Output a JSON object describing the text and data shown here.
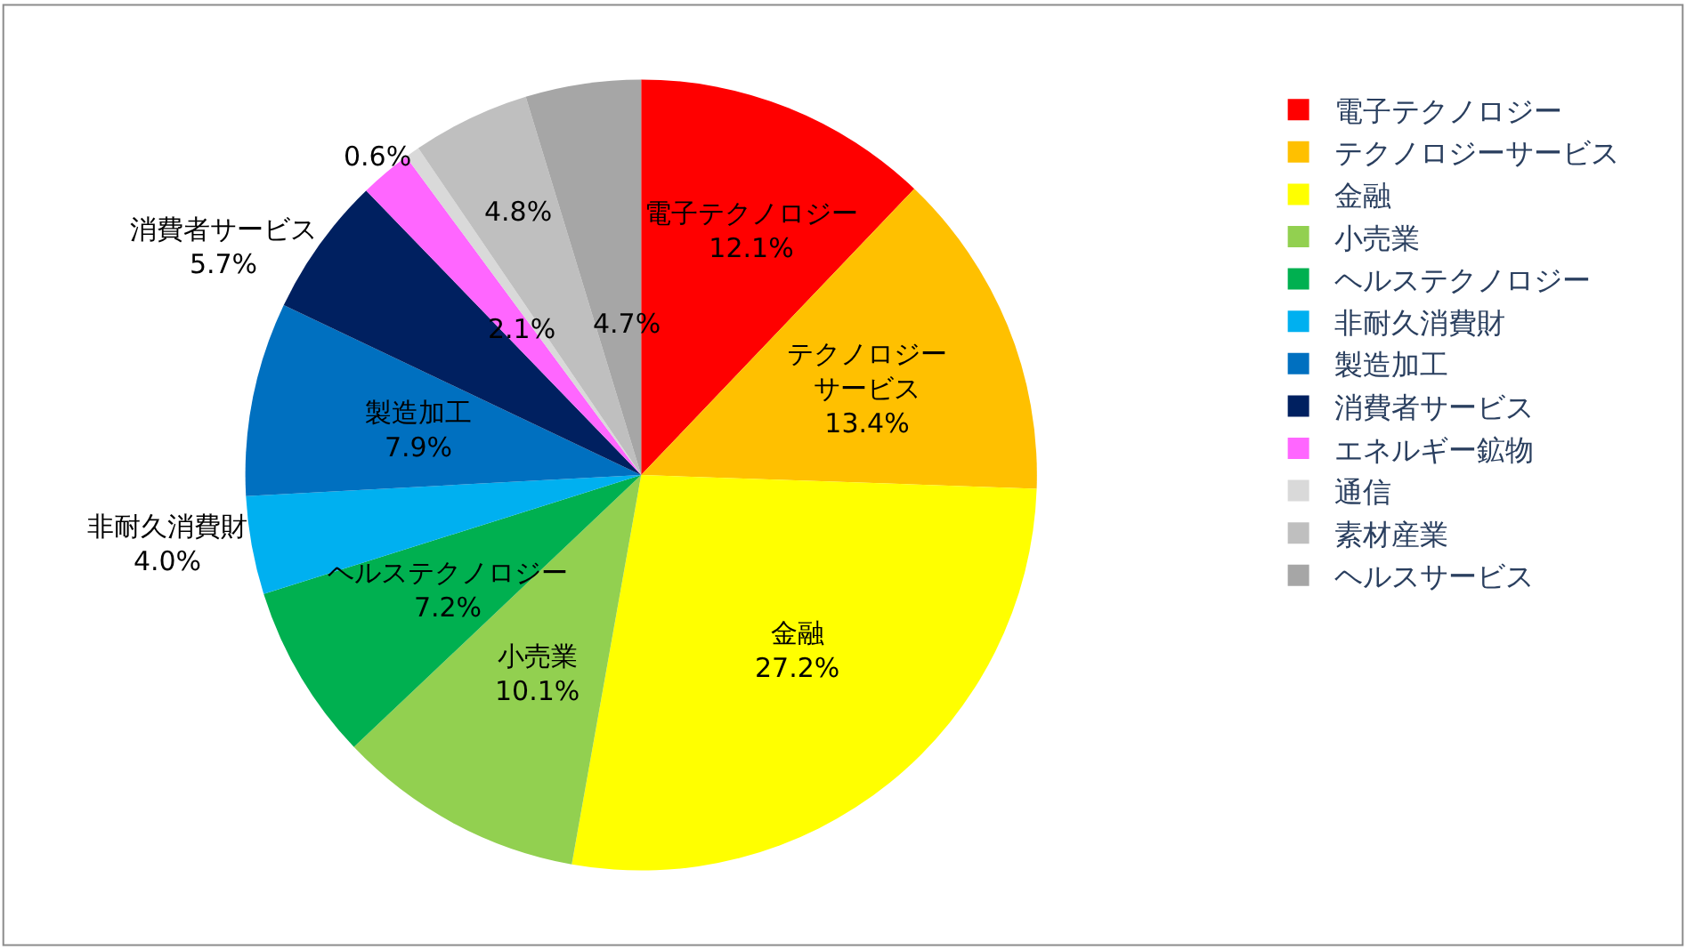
{
  "chart_data": {
    "type": "pie",
    "categories": [
      "電子テクノロジー",
      "テクノロジーサービス",
      "金融",
      "小売業",
      "ヘルステクノロジー",
      "非耐久消費財",
      "製造加工",
      "消費者サービス",
      "エネルギー鉱物",
      "通信",
      "素材産業",
      "ヘルスサービス"
    ],
    "values": [
      12.1,
      13.4,
      27.2,
      10.1,
      7.2,
      4.0,
      7.9,
      5.7,
      2.1,
      0.6,
      4.8,
      4.7
    ],
    "colors": [
      "#ff0000",
      "#ffc000",
      "#ffff00",
      "#92d050",
      "#00b050",
      "#00b0f0",
      "#0070c0",
      "#002060",
      "#ff66ff",
      "#d9d9d9",
      "#bfbfbf",
      "#a6a6a6"
    ],
    "value_labels": [
      "電子テクノロジー 12.1%",
      "テクノロジーサービス 13.4%",
      "金融 27.2%",
      "小売業 10.1%",
      "ヘルステクノロジー 7.2%",
      "非耐久消費財 4.0%",
      "製造加工 7.9%",
      "消費者サービス 5.7%",
      "2.1%",
      "0.6%",
      "4.8%",
      "4.7%"
    ],
    "legend": "right"
  }
}
